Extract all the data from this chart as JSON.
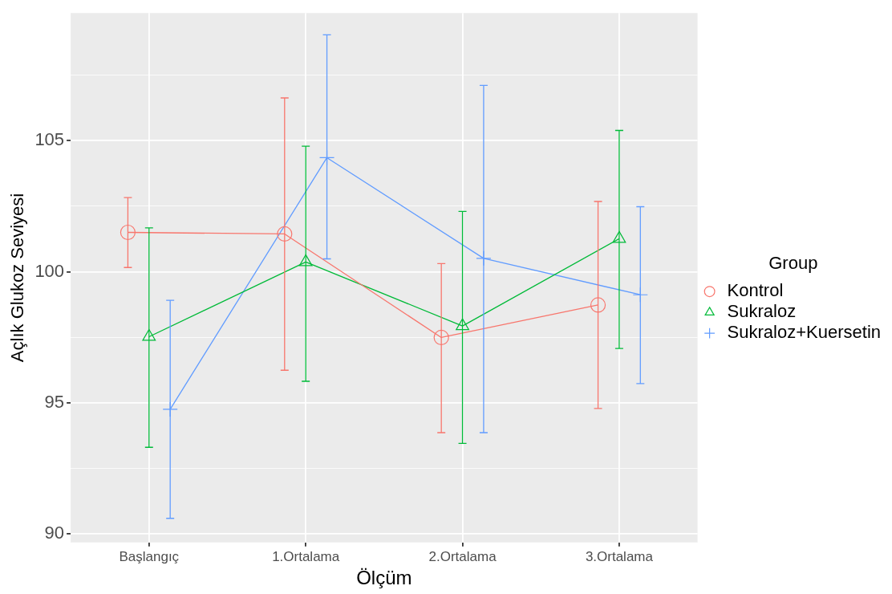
{
  "chart_data": {
    "type": "line",
    "xlabel": "Ölçüm",
    "ylabel": "Açlık Glukoz Seviyesi",
    "legend_title": "Group",
    "legend": "right",
    "grid": true,
    "categories": [
      "Başlangıç",
      "1.Ortalama",
      "2.Ortalama",
      "3.Ortalama"
    ],
    "ylim": [
      89.67,
      109.87
    ],
    "yticks": [
      90,
      {
        "value": 92.5,
        "label": null
      },
      95,
      {
        "value": 97.5,
        "label": null
      },
      100,
      {
        "value": 102.5,
        "label": null
      },
      105,
      {
        "value": 107.5,
        "label": null
      }
    ],
    "series": [
      {
        "name": "Kontrol",
        "color": "#f8766d",
        "marker": "circle",
        "values": [
          101.5,
          101.44,
          97.49,
          98.73
        ],
        "errors": [
          [
            100.16,
            102.83
          ],
          [
            96.24,
            106.63
          ],
          [
            93.86,
            100.31
          ],
          [
            94.78,
            102.68
          ]
        ]
      },
      {
        "name": "Sukraloz",
        "color": "#00ba38",
        "marker": "triangle",
        "values": [
          97.52,
          100.37,
          97.93,
          101.26
        ],
        "errors": [
          [
            93.3,
            101.67
          ],
          [
            95.82,
            104.79
          ],
          [
            93.45,
            102.3
          ],
          [
            97.07,
            105.39
          ]
        ]
      },
      {
        "name": "Sukraloz+Kuersetin",
        "color": "#619cff",
        "marker": "cross",
        "values": [
          94.75,
          104.35,
          100.51,
          99.12
        ],
        "errors": [
          [
            90.59,
            98.91
          ],
          [
            100.49,
            109.04
          ],
          [
            93.86,
            107.11
          ],
          [
            95.73,
            102.48
          ]
        ]
      }
    ]
  }
}
